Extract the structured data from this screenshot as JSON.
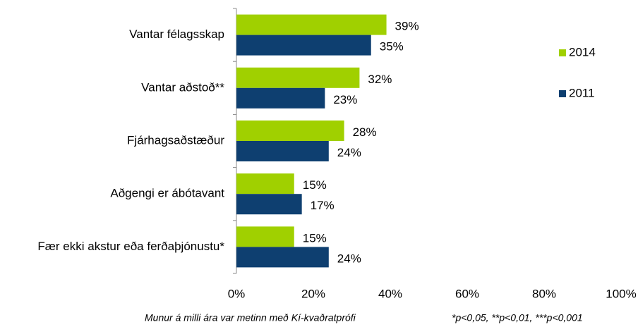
{
  "chart_data": {
    "type": "hbar",
    "categories": [
      "Vantar félagsskap",
      "Vantar aðstoð**",
      "Fjárhagsaðstæður",
      "Aðgengi er ábótavant",
      "Fær ekki akstur eða ferðaþjónustu*"
    ],
    "series": [
      {
        "name": "2014",
        "color": "#a0d000",
        "values": [
          39,
          32,
          28,
          15,
          15
        ],
        "value_labels": [
          "39%",
          "32%",
          "28%",
          "15%",
          "15%"
        ]
      },
      {
        "name": "2011",
        "color": "#0e3f70",
        "values": [
          35,
          23,
          24,
          17,
          24
        ],
        "value_labels": [
          "35%",
          "23%",
          "24%",
          "17%",
          "24%"
        ]
      }
    ],
    "xlim": [
      0,
      100
    ],
    "xticks": [
      {
        "value": 0,
        "label": "0%"
      },
      {
        "value": 20,
        "label": "20%"
      },
      {
        "value": 40,
        "label": "40%"
      },
      {
        "value": 60,
        "label": "60%"
      },
      {
        "value": 80,
        "label": "80%"
      },
      {
        "value": 100,
        "label": "100%"
      }
    ],
    "legend": "right",
    "annotations": [
      "Munur á milli ára var metinn með Kí-kvaðratprófi",
      "*p<0,05, **p<0,01, ***p<0,001"
    ]
  }
}
